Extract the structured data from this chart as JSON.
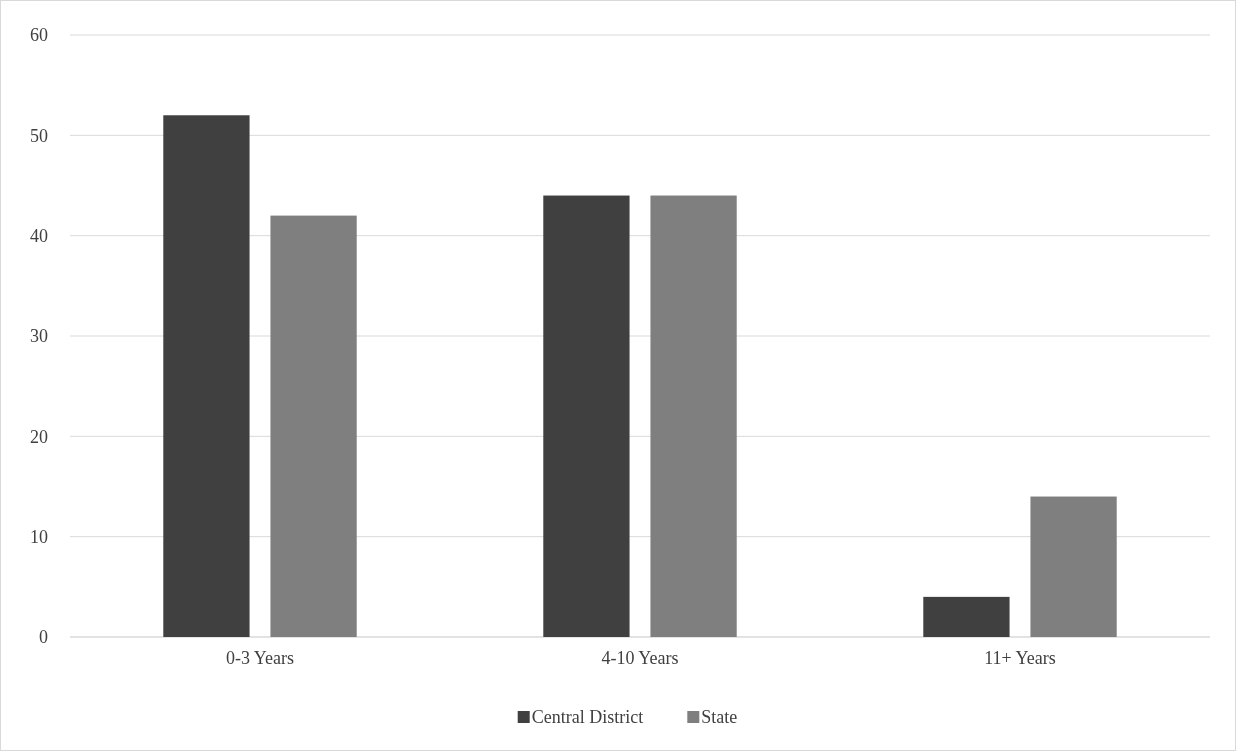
{
  "chart_data": {
    "type": "bar",
    "categories": [
      "0-3 Years",
      "4-10 Years",
      "11+ Years"
    ],
    "series": [
      {
        "name": "Central District",
        "color": "#404040",
        "values": [
          52,
          44,
          4
        ]
      },
      {
        "name": "State",
        "color": "#7f7f7f",
        "values": [
          42,
          44,
          14
        ]
      }
    ],
    "ylim": [
      0,
      60
    ],
    "yticks": [
      0,
      10,
      20,
      30,
      40,
      50,
      60
    ],
    "grid": "y",
    "legend": "bottom"
  }
}
